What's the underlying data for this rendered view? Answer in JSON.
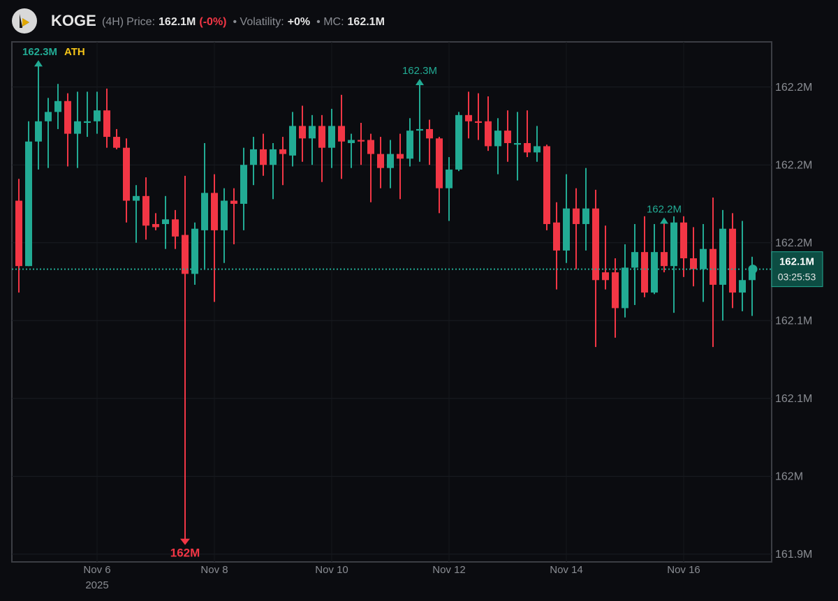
{
  "header": {
    "symbol": "KOGE",
    "interval": "(4H)",
    "price_label": "Price:",
    "price": "162.1M",
    "change": "(-0%)",
    "volatility_label": "• Volatility:",
    "volatility": "+0%",
    "mc_label": "• MC:",
    "mc": "162.1M"
  },
  "chart_data": {
    "type": "candlestick",
    "categories": [
      null,
      null,
      null,
      null,
      null,
      null,
      null,
      null,
      "Nov 6",
      null,
      null,
      null,
      null,
      null,
      null,
      null,
      null,
      null,
      null,
      null,
      "Nov 8",
      null,
      null,
      null,
      null,
      null,
      null,
      null,
      null,
      null,
      null,
      null,
      "Nov 10",
      null,
      null,
      null,
      null,
      null,
      null,
      null,
      null,
      null,
      null,
      null,
      "Nov 12",
      null,
      null,
      null,
      null,
      null,
      null,
      null,
      null,
      null,
      null,
      null,
      "Nov 14",
      null,
      null,
      null,
      null,
      null,
      null,
      null,
      null,
      null,
      null,
      null,
      "Nov 16",
      null,
      null,
      null,
      null,
      null,
      null,
      null
    ],
    "year_label": "2025",
    "open": [
      162.177,
      162.135,
      162.215,
      162.228,
      162.234,
      162.241,
      162.22,
      162.227,
      162.228,
      162.235,
      162.218,
      162.211,
      162.177,
      162.18,
      162.162,
      162.162,
      162.165,
      162.155,
      162.13,
      162.158,
      162.182,
      162.158,
      162.177,
      162.175,
      162.2,
      162.21,
      162.2,
      162.21,
      162.206,
      162.225,
      162.217,
      162.225,
      162.211,
      162.225,
      162.214,
      162.216,
      162.216,
      162.207,
      162.198,
      162.207,
      162.204,
      162.222,
      162.223,
      162.217,
      162.185,
      162.197,
      162.232,
      162.228,
      162.228,
      162.212,
      162.222,
      162.213,
      162.214,
      162.208,
      162.212,
      162.163,
      162.145,
      162.172,
      162.162,
      162.172,
      162.131,
      162.131,
      162.108,
      162.134,
      162.144,
      162.118,
      162.144,
      162.135,
      162.163,
      162.14,
      162.133,
      162.146,
      162.123,
      162.159,
      162.118,
      162.126
    ],
    "high": [
      162.191,
      162.228,
      162.265,
      162.243,
      162.252,
      162.246,
      162.247,
      162.247,
      162.247,
      162.249,
      162.223,
      162.217,
      162.187,
      162.192,
      162.169,
      162.18,
      162.171,
      162.193,
      162.163,
      162.214,
      162.194,
      162.185,
      162.185,
      162.211,
      162.218,
      162.22,
      162.214,
      162.218,
      162.234,
      162.238,
      162.232,
      162.232,
      162.236,
      162.245,
      162.22,
      162.227,
      162.22,
      162.218,
      162.216,
      162.22,
      162.23,
      162.253,
      162.229,
      162.218,
      162.205,
      162.234,
      162.247,
      162.246,
      162.244,
      162.23,
      162.235,
      162.234,
      162.235,
      162.225,
      162.213,
      162.176,
      162.194,
      162.185,
      162.198,
      162.184,
      162.161,
      162.14,
      162.149,
      162.162,
      162.167,
      162.162,
      162.164,
      162.167,
      162.167,
      162.16,
      162.162,
      162.179,
      162.171,
      162.169,
      162.164,
      162.141
    ],
    "low": [
      162.118,
      162.135,
      162.197,
      162.198,
      162.223,
      162.199,
      162.198,
      162.218,
      162.22,
      162.211,
      162.21,
      162.163,
      162.15,
      162.152,
      162.158,
      162.146,
      162.146,
      161.959,
      162.123,
      162.133,
      162.112,
      162.137,
      162.149,
      162.158,
      162.187,
      162.193,
      162.178,
      162.187,
      162.199,
      162.202,
      162.2,
      162.189,
      162.198,
      162.191,
      162.198,
      162.2,
      162.176,
      162.185,
      162.185,
      162.178,
      162.199,
      162.202,
      162.2,
      162.169,
      162.164,
      162.196,
      162.217,
      162.216,
      162.209,
      162.194,
      162.202,
      162.19,
      162.205,
      162.202,
      162.158,
      162.12,
      162.137,
      162.133,
      162.145,
      162.083,
      162.12,
      162.089,
      162.102,
      162.11,
      162.115,
      162.117,
      162.131,
      162.105,
      162.128,
      162.122,
      162.112,
      162.083,
      162.1,
      162.108,
      162.106,
      162.103
    ],
    "close": [
      162.135,
      162.215,
      162.228,
      162.234,
      162.241,
      162.22,
      162.228,
      162.228,
      162.235,
      162.218,
      162.211,
      162.177,
      162.18,
      162.161,
      162.16,
      162.165,
      162.154,
      162.13,
      162.159,
      162.182,
      162.158,
      162.177,
      162.175,
      162.2,
      162.21,
      162.2,
      162.21,
      162.207,
      162.225,
      162.217,
      162.225,
      162.211,
      162.225,
      162.215,
      162.216,
      162.215,
      162.207,
      162.198,
      162.207,
      162.204,
      162.222,
      162.223,
      162.217,
      162.185,
      162.197,
      162.232,
      162.228,
      162.227,
      162.212,
      162.222,
      162.214,
      162.214,
      162.208,
      162.212,
      162.162,
      162.145,
      162.172,
      162.162,
      162.172,
      162.126,
      162.126,
      162.108,
      162.134,
      162.144,
      162.118,
      162.144,
      162.135,
      162.163,
      162.14,
      162.133,
      162.146,
      162.123,
      162.159,
      162.118,
      162.126,
      162.133
    ],
    "up_color": "#22ab94",
    "down_color": "#f23645",
    "ylim": [
      161.945,
      162.279
    ],
    "yticks": [
      {
        "value": 161.95,
        "label": "161.9M"
      },
      {
        "value": 162.0,
        "label": "162M"
      },
      {
        "value": 162.05,
        "label": "162.1M"
      },
      {
        "value": 162.1,
        "label": "162.1M"
      },
      {
        "value": 162.15,
        "label": "162.2M"
      },
      {
        "value": 162.2,
        "label": "162.2M"
      },
      {
        "value": 162.25,
        "label": "162.2M"
      }
    ],
    "grid": true,
    "markers": [
      {
        "value": 162.265,
        "label": "162.3M",
        "tag": "ATH"
      },
      {
        "value": 161.959,
        "label": "162M"
      },
      {
        "value": 162.253,
        "label": "162.3M"
      },
      {
        "value": 162.164,
        "label": "162.2M"
      }
    ],
    "last_price": {
      "value": 162.133,
      "label": "162.1M"
    },
    "countdown": "03:25:53"
  }
}
